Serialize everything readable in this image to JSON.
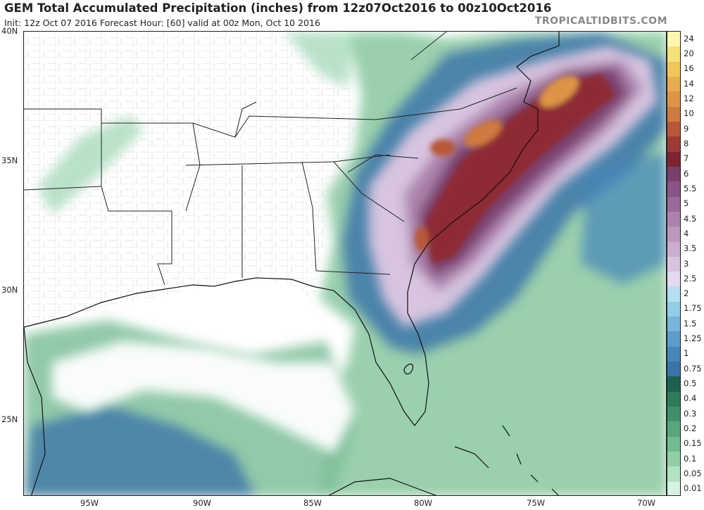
{
  "header": {
    "title": "GEM Total Accumulated Precipitation (inches) from 12z07Oct2016 to 00z10Oct2016",
    "subtitle": "Init: 12z Oct 07 2016   Forecast Hour: [60]   valid at 00z Mon, Oct 10 2016",
    "brand": "TROPICALTIDBITS.COM"
  },
  "axes": {
    "lat_labels": [
      "40N",
      "35N",
      "30N",
      "25N"
    ],
    "lon_labels": [
      "95W",
      "90W",
      "85W",
      "80W",
      "75W",
      "70W"
    ]
  },
  "legend": {
    "levels": [
      "24",
      "20",
      "16",
      "14",
      "12",
      "10",
      "9",
      "8",
      "7",
      "6",
      "5.5",
      "5",
      "4.5",
      "4",
      "3.5",
      "3",
      "2.5",
      "2",
      "1.75",
      "1.5",
      "1.25",
      "1",
      "0.75",
      "0.5",
      "0.4",
      "0.3",
      "0.2",
      "0.15",
      "0.1",
      "0.05",
      "0.01"
    ],
    "colors": [
      "#fff7b0",
      "#f6e07a",
      "#f0c65a",
      "#e8ac50",
      "#de9446",
      "#cf7a40",
      "#b85838",
      "#9c3c34",
      "#7e2430",
      "#7a3f6c",
      "#8a5486",
      "#9b6a9a",
      "#ac82ac",
      "#bc98be",
      "#caaed0",
      "#d8c4e0",
      "#e6d8ee",
      "#b2e0f2",
      "#92cce8",
      "#78b4da",
      "#5c9cca",
      "#4686ba",
      "#3a72aa",
      "#1e6050",
      "#2e7a5a",
      "#40906a",
      "#58a67c",
      "#72ba90",
      "#90cea6",
      "#b2e2c2",
      "#d6f2e2"
    ]
  },
  "map": {
    "accent_color": "#7e2430"
  }
}
